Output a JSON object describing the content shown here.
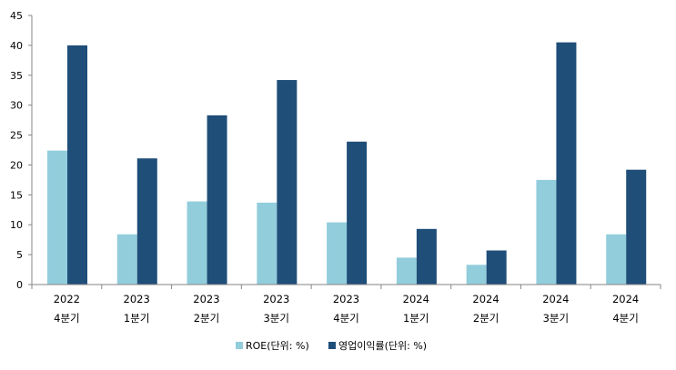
{
  "chart_data": {
    "type": "bar",
    "title": "",
    "xlabel": "",
    "ylabel": "",
    "ylim": [
      0,
      45
    ],
    "yticks": [
      0,
      5,
      10,
      15,
      20,
      25,
      30,
      35,
      40,
      45
    ],
    "grid": false,
    "legend_position": "bottom",
    "categories": [
      [
        "2022",
        "4분기"
      ],
      [
        "2023",
        "1분기"
      ],
      [
        "2023",
        "2분기"
      ],
      [
        "2023",
        "3분기"
      ],
      [
        "2023",
        "4분기"
      ],
      [
        "2024",
        "1분기"
      ],
      [
        "2024",
        "2분기"
      ],
      [
        "2024",
        "3분기"
      ],
      [
        "2024",
        "4분기"
      ]
    ],
    "series": [
      {
        "name": "ROE(단위: %)",
        "color": "#92cddc",
        "values": [
          22.4,
          8.4,
          13.9,
          13.7,
          10.4,
          4.5,
          3.3,
          17.5,
          8.4
        ]
      },
      {
        "name": "영업이익률(단위: %)",
        "color": "#1f4e79",
        "values": [
          40.0,
          21.1,
          28.3,
          34.2,
          23.9,
          9.3,
          5.7,
          40.5,
          19.2
        ]
      }
    ]
  }
}
